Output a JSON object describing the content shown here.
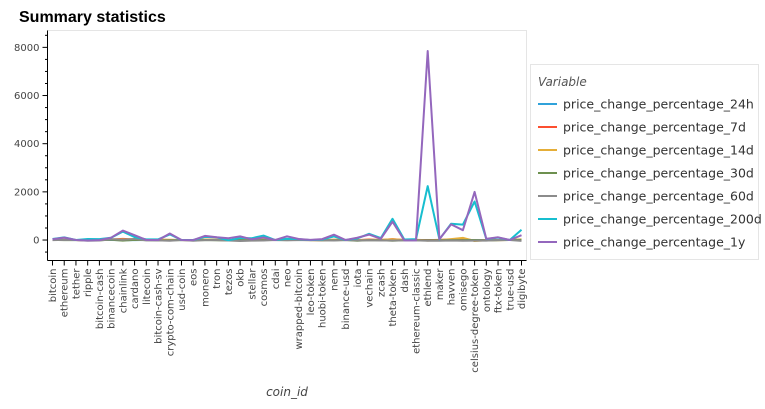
{
  "chart_data": {
    "type": "line",
    "title": "Summary statistics",
    "xlabel": "coin_id",
    "ylabel": "",
    "ylim": [
      -850,
      8700
    ],
    "yticks": [
      0,
      2000,
      4000,
      6000,
      8000
    ],
    "legend_title": "Variable",
    "legend_position": "right",
    "grid": false,
    "categories": [
      "bitcoin",
      "ethereum",
      "tether",
      "ripple",
      "bitcoin-cash",
      "binancecoin",
      "chainlink",
      "cardano",
      "litecoin",
      "bitcoin-cash-sv",
      "crypto-com-chain",
      "usd-coin",
      "eos",
      "monero",
      "tron",
      "tezos",
      "okb",
      "stellar",
      "cosmos",
      "cdai",
      "neo",
      "wrapped-bitcoin",
      "leo-token",
      "huobi-token",
      "nem",
      "binance-usd",
      "iota",
      "vechain",
      "zcash",
      "theta-token",
      "dash",
      "ethereum-classic",
      "ethlend",
      "maker",
      "havven",
      "omisego",
      "celsius-degree-token",
      "ontology",
      "ftx-token",
      "true-usd",
      "digibyte"
    ],
    "tick_labels": [
      "bitcoin",
      "ethereum",
      "tether",
      "ripple",
      "bitcoin-cash",
      "binancecoin",
      "chainlink",
      "cardano",
      "litecoin",
      "bitcoin-cash-sv",
      "crypto-com-chain",
      "usd-coin",
      "eos",
      "monero",
      "tron",
      "tezos",
      "okb",
      "stellar",
      "cosmos",
      "cdai",
      "neo",
      "wrapped-bitcoin",
      "leo-token",
      "huobi-token",
      "nem",
      "binance-usd",
      "iota",
      "vechain",
      "zcash",
      "theta-token",
      "dash",
      "ethereum-classic",
      "ethlend",
      "maker",
      "havven",
      "omisego",
      "celsius-degree-token",
      "ontology",
      "ftx-token",
      "true-usd",
      "digibyte"
    ],
    "series": [
      {
        "name": "price_change_percentage_24h",
        "color": "#30a2da",
        "values": [
          1,
          0,
          0,
          0,
          2,
          3,
          -2,
          -1,
          1,
          0,
          1,
          0,
          0,
          1,
          0,
          0,
          0,
          0,
          0,
          0,
          0,
          1,
          0,
          0,
          0,
          0,
          0,
          0,
          1,
          0,
          0,
          0,
          -1,
          0,
          1,
          0,
          0,
          -1,
          0,
          0,
          -1
        ]
      },
      {
        "name": "price_change_percentage_7d",
        "color": "#fc4f30",
        "values": [
          7,
          10,
          0,
          -17,
          15,
          24,
          46,
          26,
          5,
          10,
          7,
          0,
          -10,
          15,
          15,
          -5,
          -19,
          -5,
          22,
          0,
          29,
          7,
          3,
          -6,
          8,
          0,
          -2,
          20,
          2,
          40,
          3,
          7,
          -4,
          6,
          20,
          45,
          -20,
          -1,
          -1,
          0,
          15
        ]
      },
      {
        "name": "price_change_percentage_14d",
        "color": "#e5ae38",
        "values": [
          6,
          4,
          0,
          -6,
          -1,
          26,
          28,
          40,
          6,
          8,
          6,
          0,
          -5,
          20,
          6,
          -4,
          -4,
          -6,
          35,
          0,
          15,
          6,
          -6,
          -6,
          10,
          0,
          -4,
          5,
          7,
          30,
          3,
          7,
          -25,
          -3,
          40,
          90,
          -40,
          -10,
          3,
          0,
          25
        ]
      },
      {
        "name": "price_change_percentage_30d",
        "color": "#6d904f",
        "values": [
          7,
          -3,
          0,
          -16,
          -11,
          12,
          -22,
          5,
          -5,
          -15,
          -7,
          0,
          -11,
          1,
          -10,
          -20,
          -3,
          -20,
          0,
          0,
          -5,
          7,
          1,
          -10,
          -10,
          0,
          -26,
          -4,
          -6,
          -30,
          -10,
          -8,
          -12,
          -8,
          -5,
          -5,
          0,
          -17,
          -11,
          0,
          6
        ]
      },
      {
        "name": "price_change_percentage_60d",
        "color": "#8b8b8b",
        "values": [
          -2,
          5,
          0,
          -30,
          -21,
          29,
          14,
          44,
          -15,
          -17,
          -28,
          0,
          -30,
          -3,
          -5,
          -21,
          -40,
          -25,
          -18,
          0,
          -10,
          -2,
          2,
          -12,
          -21,
          0,
          -17,
          -11,
          -19,
          -20,
          -15,
          -14,
          -33,
          -28,
          -18,
          -26,
          -25,
          -25,
          1,
          0,
          -35
        ]
      },
      {
        "name": "price_change_percentage_200d",
        "color": "#17becf",
        "values": [
          42,
          110,
          0,
          41,
          38,
          95,
          350,
          120,
          25,
          25,
          235,
          0,
          1,
          130,
          110,
          -11,
          85,
          75,
          185,
          0,
          56,
          40,
          -1,
          20,
          150,
          0,
          67,
          260,
          80,
          880,
          24,
          37,
          2240,
          31,
          680,
          640,
          1600,
          43,
          101,
          0,
          430
        ]
      },
      {
        "name": "price_change_percentage_1y",
        "color": "#9467bd",
        "values": [
          35,
          102,
          0,
          -20,
          -2,
          96,
          390,
          200,
          5,
          -3,
          270,
          0,
          -5,
          170,
          112,
          76,
          150,
          32,
          107,
          0,
          155,
          42,
          4,
          38,
          220,
          0,
          95,
          225,
          50,
          760,
          -15,
          -17,
          7850,
          39,
          650,
          410,
          2000,
          47,
          113,
          0,
          200
        ]
      }
    ]
  }
}
